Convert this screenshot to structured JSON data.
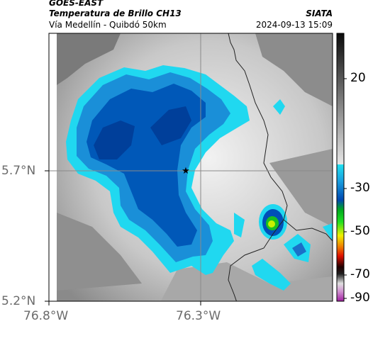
{
  "header": {
    "satellite": "GOES-EAST",
    "product": "Temperatura de Brillo CH13",
    "route": "Vía Medellín - Quibdó 50km",
    "org": "SIATA",
    "timestamp": "2024-09-13 15:09"
  },
  "map": {
    "lat_ticks": [
      "5.7°N",
      "5.2°N"
    ],
    "lon_ticks": [
      "76.8°W",
      "76.3°W"
    ],
    "marker_icon": "star-icon"
  },
  "colorbar": {
    "labels": [
      "20",
      "-30",
      "-50",
      "-70",
      "-90"
    ],
    "colors": {
      "warm_top": "#111111",
      "warm_bottom": "#d8d8d8",
      "cyan": "#20d8f0",
      "blue": "#0050b8",
      "green": "#18c020",
      "yellow": "#e8e800",
      "red": "#e02000",
      "dark": "#202020",
      "magenta": "#c040c0"
    }
  }
}
